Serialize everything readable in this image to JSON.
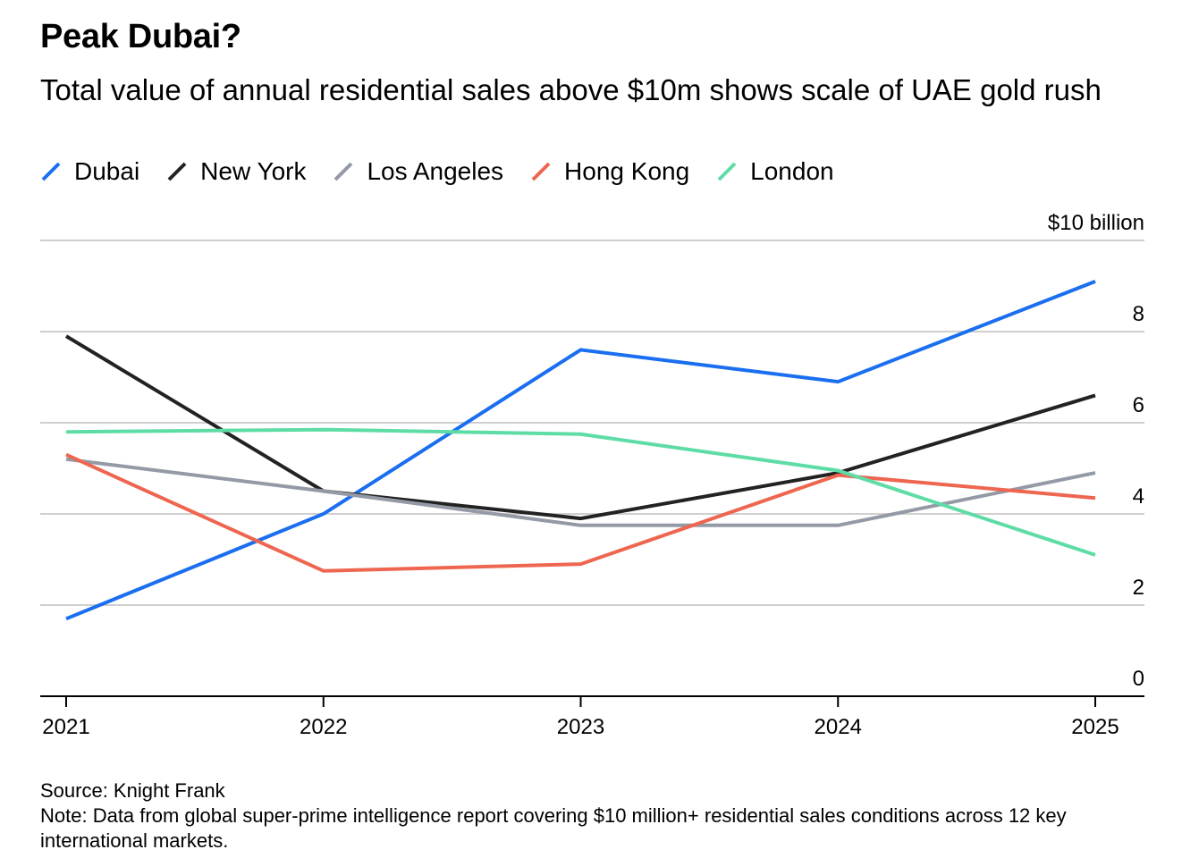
{
  "header": {
    "title": "Peak Dubai?",
    "subtitle": "Total value of annual residential sales above $10m shows scale of UAE gold rush"
  },
  "legend": {
    "items": [
      {
        "label": "Dubai",
        "color": "#1a6ef0"
      },
      {
        "label": "New York",
        "color": "#222222"
      },
      {
        "label": "Los Angeles",
        "color": "#939aa6"
      },
      {
        "label": "Hong Kong",
        "color": "#ee6650"
      },
      {
        "label": "London",
        "color": "#5edca6"
      }
    ]
  },
  "chart_data": {
    "type": "line",
    "title": "Peak Dubai?",
    "subtitle": "Total value of annual residential sales above $10m shows scale of UAE gold rush",
    "x": [
      "2021",
      "2022",
      "2023",
      "2024",
      "2025"
    ],
    "y_unit_label": "$10 billion",
    "yticks": [
      0,
      2,
      4,
      6,
      8,
      10
    ],
    "ytick_labels": [
      "0",
      "2",
      "4",
      "6",
      "8",
      "$10 billion"
    ],
    "ylim": [
      0,
      10
    ],
    "grid": true,
    "y_axis_side": "right",
    "legend_position": "top-left",
    "series": [
      {
        "name": "Dubai",
        "color": "#1a6ef0",
        "values": [
          1.7,
          4.0,
          7.6,
          6.9,
          9.1
        ]
      },
      {
        "name": "New York",
        "color": "#222222",
        "values": [
          7.9,
          4.5,
          3.9,
          4.9,
          6.6
        ]
      },
      {
        "name": "Los Angeles",
        "color": "#939aa6",
        "values": [
          5.2,
          4.5,
          3.75,
          3.75,
          4.9
        ]
      },
      {
        "name": "Hong Kong",
        "color": "#ee6650",
        "values": [
          5.3,
          2.75,
          2.9,
          4.85,
          4.35
        ]
      },
      {
        "name": "London",
        "color": "#5edca6",
        "values": [
          5.8,
          5.85,
          5.75,
          4.95,
          3.1
        ]
      }
    ]
  },
  "footer": {
    "source": "Source: Knight Frank",
    "note": "Note: Data from global super-prime intelligence report covering $10 million+ residential sales conditions across 12 key international markets."
  }
}
